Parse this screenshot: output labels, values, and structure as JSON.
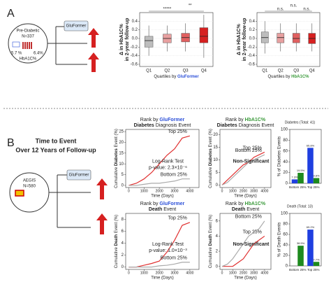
{
  "panel_a": {
    "letter": "A",
    "cohort": "Pre-Diabetic",
    "n": "N=337",
    "low": "5.7 %",
    "high": "6.4%",
    "marker": "HbA1C%",
    "model": "GluFormer"
  },
  "panel_b": {
    "letter": "B",
    "title": "Time to Event",
    "subtitle": "Over 12 Years of Follow-up",
    "cohort": "AEGIS",
    "n": "N=580",
    "model": "GluFormer"
  },
  "chart_data": [
    {
      "type": "box",
      "ylabel": [
        "Δ in HbA1C%",
        "in 2-year follow-up"
      ],
      "xlabel": "Quartiles by ",
      "xlabel_model": "GluFormer",
      "model_color": "#2b4fd8",
      "categories": [
        "Q1",
        "Q2",
        "Q3",
        "Q4"
      ],
      "colors": [
        "#bdbdbd",
        "#e8a0a0",
        "#e06060",
        "#d62020"
      ],
      "boxes": [
        {
          "min": -0.4,
          "q1": -0.2,
          "median": -0.05,
          "q3": 0.05,
          "max": 0.3
        },
        {
          "min": -0.3,
          "q1": -0.1,
          "median": 0.0,
          "q3": 0.1,
          "max": 0.3
        },
        {
          "min": -0.3,
          "q1": -0.08,
          "median": 0.02,
          "q3": 0.12,
          "max": 0.35
        },
        {
          "min": -0.45,
          "q1": -0.1,
          "median": 0.05,
          "q3": 0.25,
          "max": 0.55
        }
      ],
      "annotations": [
        "*****",
        "**"
      ],
      "ylim": [
        -0.65,
        0.6
      ],
      "yticks": [
        0.4,
        0.2,
        {
          "value": 0,
          "label": "0.0"
        },
        -0.2,
        -0.4,
        -0.6
      ],
      "grid": true
    },
    {
      "type": "box",
      "ylabel": [
        "Δ in HbA1C%",
        "in 2-year follow-up"
      ],
      "xlabel": "Quartiles by ",
      "xlabel_model": "HbA1C%",
      "model_color": "#3a9a3a",
      "categories": [
        "Q1",
        "Q2",
        "Q3",
        "Q4"
      ],
      "colors": [
        "#bdbdbd",
        "#e8a0a0",
        "#e06060",
        "#d62020"
      ],
      "boxes": [
        {
          "min": -0.35,
          "q1": -0.1,
          "median": 0.02,
          "q3": 0.15,
          "max": 0.4
        },
        {
          "min": -0.3,
          "q1": -0.1,
          "median": 0.02,
          "q3": 0.12,
          "max": 0.35
        },
        {
          "min": -0.3,
          "q1": -0.1,
          "median": 0.0,
          "q3": 0.12,
          "max": 0.35
        },
        {
          "min": -0.3,
          "q1": -0.12,
          "median": 0.0,
          "q3": 0.12,
          "max": 0.35
        }
      ],
      "annotations": [
        "n.s.",
        "n.s.",
        "n.s."
      ],
      "ylim": [
        -0.65,
        0.6
      ],
      "yticks": [
        0.4,
        0.2,
        {
          "value": 0,
          "label": "0.0"
        },
        -0.2,
        -0.4,
        -0.6
      ],
      "grid": true
    },
    {
      "type": "line",
      "title": "Rank by ",
      "title_model": "GluFormer",
      "model_color": "#2b4fd8",
      "subtitle_bold": "Diabetes",
      "subtitle": " Diagnosis Event",
      "ylabel_parts": [
        "Cumulative ",
        "Diabetes",
        " Event (%)"
      ],
      "xlabel": "Time (Days)",
      "x": [
        0,
        500,
        1000,
        1500,
        2000,
        2500,
        3000,
        3500,
        4000
      ],
      "series": [
        {
          "name": "Top 25%",
          "color": "#e03030",
          "values": [
            0,
            1,
            3,
            6,
            10,
            14,
            17,
            22,
            23
          ]
        },
        {
          "name": "Bottom 25%",
          "color": "#aaaaaa",
          "values": [
            0,
            0,
            0.5,
            1,
            1,
            1.5,
            2,
            3,
            3
          ]
        }
      ],
      "annotations": [
        "Log-Rank Test",
        "p-value: 2.3×10⁻⁶"
      ],
      "xlim": [
        -200,
        4600
      ],
      "xticks": [
        0,
        1000,
        2000,
        3000,
        4000
      ],
      "ylim": [
        -1,
        26
      ],
      "yticks": [
        0,
        5,
        10,
        15,
        20,
        25
      ]
    },
    {
      "type": "line",
      "title": "Rank by ",
      "title_model": "HbA1C%",
      "model_color": "#3a9a3a",
      "subtitle_bold": "Diabetes",
      "subtitle": " Diagnosis Event",
      "ylabel_parts": [
        "Cumulative ",
        "Diabetes",
        " Event (%)"
      ],
      "xlabel": "Time (Days)",
      "x": [
        0,
        500,
        1000,
        1500,
        2000,
        2500,
        3000,
        3500,
        4000
      ],
      "series": [
        {
          "name": "Top 25%",
          "color": "#e03030",
          "values": [
            0,
            2,
            4,
            6,
            8,
            9,
            11,
            12,
            13
          ]
        },
        {
          "name": "Bottom 25%",
          "color": "#aaaaaa",
          "values": [
            0,
            1,
            3,
            5,
            7,
            9,
            10,
            11,
            12
          ]
        }
      ],
      "annotations": [
        "Non-Significant"
      ],
      "xlim": [
        -200,
        4600
      ],
      "xticks": [
        0,
        1000,
        2000,
        3000,
        4000
      ],
      "ylim": [
        -1,
        22
      ],
      "yticks": [
        0,
        5,
        10,
        15,
        20
      ]
    },
    {
      "type": "line",
      "title": "Rank by ",
      "title_model": "GluFormer",
      "model_color": "#2b4fd8",
      "subtitle_bold": "Death",
      "subtitle": " Event",
      "ylabel_parts": [
        "Cumulative ",
        "Death",
        " Event (%)"
      ],
      "xlabel": "Time (Days)",
      "x": [
        0,
        500,
        1000,
        1500,
        2000,
        2500,
        3000,
        3500,
        4000
      ],
      "series": [
        {
          "name": "Top 25%",
          "color": "#e03030",
          "values": [
            0,
            0,
            0.3,
            0.6,
            1,
            2.5,
            4.5,
            7,
            7.5
          ]
        },
        {
          "name": "Bottom 25%",
          "color": "#aaaaaa",
          "values": [
            0,
            0,
            0,
            0,
            0.2,
            0.3,
            0.5,
            0.8,
            0.8
          ]
        }
      ],
      "annotations": [
        "Log-Rank Test",
        "p-value: 1.0×10⁻³"
      ],
      "xlim": [
        -200,
        4600
      ],
      "xticks": [
        0,
        1000,
        2000,
        3000,
        4000
      ],
      "ylim": [
        -0.4,
        9
      ],
      "yticks": [
        0,
        2,
        4,
        6,
        8
      ]
    },
    {
      "type": "line",
      "title": "Rank by ",
      "title_model": "HbA1C%",
      "model_color": "#3a9a3a",
      "subtitle_bold": "Death",
      "subtitle": " Event",
      "ylabel_parts": [
        "Cumulative ",
        "Death",
        " Event (%)"
      ],
      "xlabel": "Time (Days)",
      "x": [
        0,
        500,
        1000,
        1500,
        2000,
        2500,
        3000,
        3500,
        4000
      ],
      "series": [
        {
          "name": "Top 25%",
          "color": "#e03030",
          "values": [
            0,
            0,
            0,
            0.5,
            1,
            2,
            3,
            3.5,
            4
          ]
        },
        {
          "name": "Bottom 25%",
          "color": "#aaaaaa",
          "values": [
            0,
            0.3,
            1,
            2,
            3,
            4,
            4.5,
            5,
            6
          ]
        }
      ],
      "annotations": [
        "Non-Significant"
      ],
      "xlim": [
        -200,
        4600
      ],
      "xticks": [
        0,
        1000,
        2000,
        3000,
        4000
      ],
      "ylim": [
        -0.4,
        7
      ],
      "yticks": [
        0,
        2,
        4,
        6
      ]
    },
    {
      "type": "bar",
      "title": "Diabetes (Total: 41)",
      "ylabel": "% of Diabetes Events",
      "categories": [
        "Bottom 25%",
        "Top 25%"
      ],
      "category_colors": [
        "#999999",
        "#e03030"
      ],
      "series": [
        {
          "color": "#1f3fe0",
          "values": [
            7.3,
            65.8
          ],
          "value_labels": [
            "7.3%",
            "65.8%"
          ]
        },
        {
          "color": "#1e8a1e",
          "values": [
            19.5,
            9.8
          ],
          "value_labels": [
            "19.5%",
            "9.8%"
          ]
        }
      ],
      "ylim": [
        0,
        100
      ],
      "yticks": [
        0,
        20,
        40,
        60,
        80,
        100
      ]
    },
    {
      "type": "bar",
      "title": "Death (Total: 13)",
      "ylabel": "% of Death Events",
      "categories": [
        "Bottom 25%",
        "Top 25%"
      ],
      "category_colors": [
        "#999999",
        "#e03030"
      ],
      "series": [
        {
          "color": "#1f3fe0",
          "values": [
            null,
            69.2
          ],
          "value_labels": [
            null,
            "69.2%"
          ]
        },
        {
          "color": "#1e8a1e",
          "values": [
            38.5,
            7.7
          ],
          "value_labels": [
            "38.5%",
            "7.7%"
          ]
        }
      ],
      "ylim": [
        0,
        100
      ],
      "yticks": [
        0,
        20,
        40,
        60,
        80,
        100
      ]
    }
  ]
}
